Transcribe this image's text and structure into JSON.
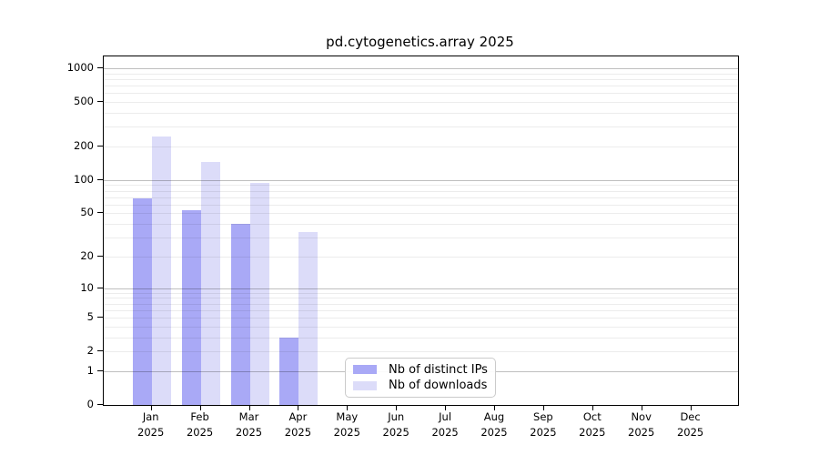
{
  "figure": {
    "title": "pd.cytogenetics.array 2025"
  },
  "legend": {
    "items": [
      {
        "label": "Nb of distinct IPs",
        "color": "#a9a9f6"
      },
      {
        "label": "Nb of downloads",
        "color": "#dcdcf9"
      }
    ]
  },
  "chart_data": {
    "type": "bar",
    "title": "pd.cytogenetics.array 2025",
    "categories": [
      "Jan 2025",
      "Feb 2025",
      "Mar 2025",
      "Apr 2025",
      "May 2025",
      "Jun 2025",
      "Jul 2025",
      "Aug 2025",
      "Sep 2025",
      "Oct 2025",
      "Nov 2025",
      "Dec 2025"
    ],
    "series": [
      {
        "name": "Nb of distinct IPs",
        "color": "#a9a9f6",
        "values": [
          68,
          53,
          40,
          3,
          null,
          null,
          null,
          null,
          null,
          null,
          null,
          null
        ]
      },
      {
        "name": "Nb of downloads",
        "color": "#dcdcf9",
        "values": [
          248,
          145,
          94,
          34,
          null,
          null,
          null,
          null,
          null,
          null,
          null,
          null
        ]
      }
    ],
    "xlabel": "",
    "ylabel": "",
    "yscale": "log1p",
    "y_ticks": [
      0,
      1,
      2,
      5,
      10,
      20,
      50,
      100,
      200,
      500,
      1000
    ],
    "y_minor_gridlines": [
      2,
      3,
      4,
      5,
      6,
      7,
      8,
      9,
      20,
      30,
      40,
      50,
      60,
      70,
      80,
      90,
      200,
      300,
      400,
      500,
      600,
      700,
      800,
      900
    ],
    "y_major_gridlines": [
      1,
      10,
      100,
      1000
    ],
    "ylim": [
      0,
      1275
    ],
    "grid": "both",
    "legend_position": "lower-center"
  }
}
